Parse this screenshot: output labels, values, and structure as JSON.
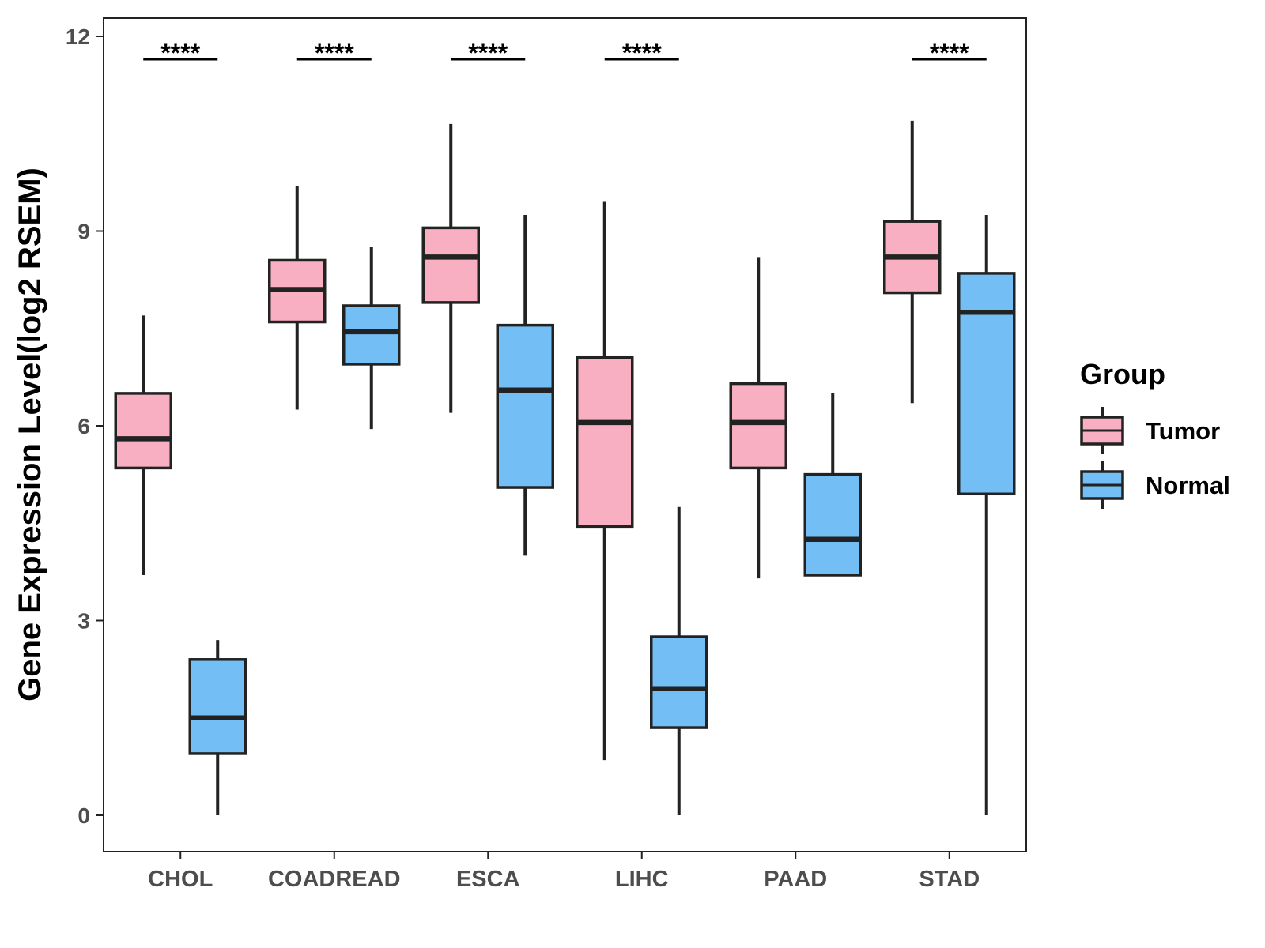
{
  "chart_data": {
    "type": "boxplot",
    "title": "",
    "xlabel": "",
    "ylabel": "Gene Expression Level(log2 RSEM)",
    "ylim": [
      -0.56,
      12.28
    ],
    "yticks": [
      0,
      3,
      6,
      9,
      12
    ],
    "ytick_labels": [
      "0",
      "3",
      "6",
      "9",
      "12"
    ],
    "grid": false,
    "categories": [
      "CHOL",
      "COADREAD",
      "ESCA",
      "LIHC",
      "PAAD",
      "STAD"
    ],
    "legend": {
      "title": "Group",
      "position": "right",
      "entries": [
        "Tumor",
        "Normal"
      ]
    },
    "colors": {
      "Tumor": "#F9AFC2",
      "Normal": "#73BEF5",
      "outline": "#222222"
    },
    "series": [
      {
        "name": "Tumor",
        "boxes": [
          {
            "min": 3.7,
            "q1": 5.35,
            "median": 5.8,
            "q3": 6.5,
            "max": 7.7
          },
          {
            "min": 6.25,
            "q1": 7.6,
            "median": 8.1,
            "q3": 8.55,
            "max": 9.7
          },
          {
            "min": 6.2,
            "q1": 7.9,
            "median": 8.6,
            "q3": 9.05,
            "max": 10.65
          },
          {
            "min": 0.85,
            "q1": 4.45,
            "median": 6.05,
            "q3": 7.05,
            "max": 9.45
          },
          {
            "min": 3.65,
            "q1": 5.35,
            "median": 6.05,
            "q3": 6.65,
            "max": 8.6
          },
          {
            "min": 6.35,
            "q1": 8.05,
            "median": 8.6,
            "q3": 9.15,
            "max": 10.7
          }
        ]
      },
      {
        "name": "Normal",
        "boxes": [
          {
            "min": 0.0,
            "q1": 0.95,
            "median": 1.5,
            "q3": 2.4,
            "max": 2.7
          },
          {
            "min": 5.95,
            "q1": 6.95,
            "median": 7.45,
            "q3": 7.85,
            "max": 8.75
          },
          {
            "min": 4.0,
            "q1": 5.05,
            "median": 6.55,
            "q3": 7.55,
            "max": 9.25
          },
          {
            "min": 0.0,
            "q1": 1.35,
            "median": 1.95,
            "q3": 2.75,
            "max": 4.75
          },
          {
            "min": 3.7,
            "q1": 3.7,
            "median": 4.25,
            "q3": 5.25,
            "max": 6.5
          },
          {
            "min": 0.0,
            "q1": 4.95,
            "median": 7.75,
            "q3": 8.35,
            "max": 9.25
          }
        ]
      }
    ],
    "annotations": [
      {
        "category": "CHOL",
        "text": "****"
      },
      {
        "category": "COADREAD",
        "text": "****"
      },
      {
        "category": "ESCA",
        "text": "****"
      },
      {
        "category": "LIHC",
        "text": "****"
      },
      {
        "category": "STAD",
        "text": "****"
      }
    ]
  }
}
